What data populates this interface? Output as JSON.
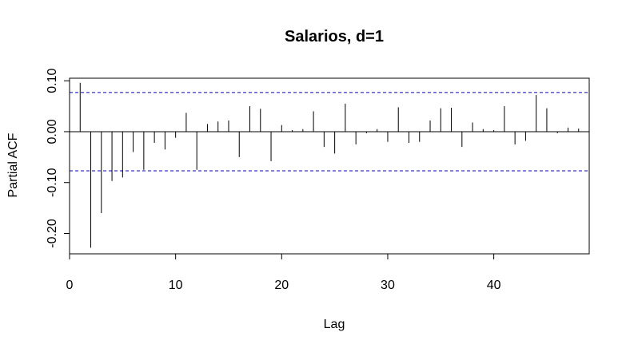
{
  "chart_data": {
    "type": "bar",
    "title": "Salarios, d=1",
    "xlabel": "Lag",
    "ylabel": "Partial ACF",
    "xlim": [
      0,
      49
    ],
    "ylim": [
      -0.24,
      0.105
    ],
    "x_ticks": [
      "0",
      "10",
      "20",
      "30",
      "40"
    ],
    "y_ticks": [
      "-0.20",
      "-0.10",
      "0.00",
      "0.10"
    ],
    "confidence_bound": 0.077,
    "colors": {
      "bars": "#000000",
      "confidence": "#0000cd",
      "zero_line": "#000000"
    },
    "lags": [
      1,
      2,
      3,
      4,
      5,
      6,
      7,
      8,
      9,
      10,
      11,
      12,
      13,
      14,
      15,
      16,
      17,
      18,
      19,
      20,
      21,
      22,
      23,
      24,
      25,
      26,
      27,
      28,
      29,
      30,
      31,
      32,
      33,
      34,
      35,
      36,
      37,
      38,
      39,
      40,
      41,
      42,
      43,
      44,
      45,
      46,
      47,
      48
    ],
    "values": [
      0.096,
      -0.228,
      -0.16,
      -0.097,
      -0.09,
      -0.04,
      -0.075,
      -0.022,
      -0.035,
      -0.012,
      0.037,
      -0.075,
      0.015,
      0.02,
      0.022,
      -0.05,
      0.05,
      0.045,
      -0.058,
      0.013,
      0.003,
      0.005,
      0.04,
      -0.03,
      -0.043,
      0.055,
      -0.025,
      -0.003,
      0.005,
      -0.02,
      0.048,
      -0.022,
      -0.02,
      0.022,
      0.046,
      0.047,
      -0.03,
      0.018,
      0.005,
      0.003,
      0.05,
      -0.025,
      -0.018,
      0.072,
      0.046,
      -0.003,
      0.008,
      0.006
    ]
  }
}
